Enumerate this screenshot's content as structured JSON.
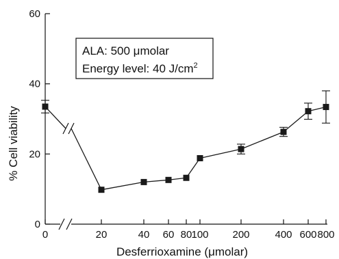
{
  "chart_data": {
    "type": "line",
    "title": "",
    "xlabel": "Desferrioxamine (μmolar)",
    "ylabel": "% Cell viability",
    "ylim": [
      0,
      60
    ],
    "yticks": [
      0,
      20,
      40,
      60
    ],
    "grid": false,
    "x_scale": "broken",
    "x_tick_labels": [
      "0",
      "20",
      "40",
      "60",
      "80",
      "100",
      "200",
      "400",
      "600",
      "800"
    ],
    "series": [
      {
        "marker": "square",
        "color": "#1a1a1a",
        "points": [
          {
            "x": "0",
            "y": 33.5,
            "err": 1.8
          },
          {
            "x": "20",
            "y": 9.8,
            "err": 0
          },
          {
            "x": "40",
            "y": 12.0,
            "err": 0
          },
          {
            "x": "60",
            "y": 12.6,
            "err": 0
          },
          {
            "x": "80",
            "y": 13.2,
            "err": 0
          },
          {
            "x": "100",
            "y": 18.8,
            "err": 0
          },
          {
            "x": "200",
            "y": 21.4,
            "err": 1.4
          },
          {
            "x": "400",
            "y": 26.3,
            "err": 1.3
          },
          {
            "x": "600",
            "y": 32.2,
            "err": 2.3
          },
          {
            "x": "800",
            "y": 33.4,
            "err": 4.6
          }
        ]
      }
    ],
    "annotation": {
      "line1": "ALA: 500 μmolar",
      "line2_main": "Energy level: 40 J/cm",
      "line2_sup": "2"
    }
  }
}
